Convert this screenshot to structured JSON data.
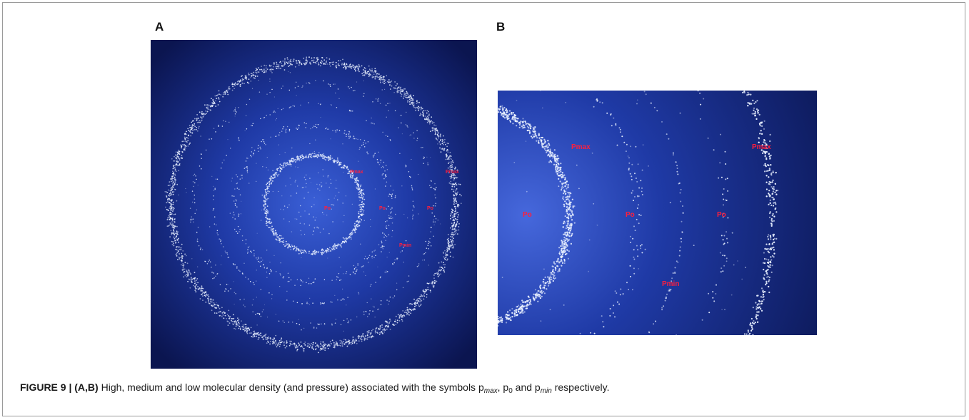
{
  "figure": {
    "panel_a_letter": "A",
    "panel_b_letter": "B",
    "panel_a_labels": {
      "pmax_inner": "Pmax",
      "pmax_outer": "Pmax",
      "p0_center": "Po",
      "p0_mid": "Po",
      "p0_outer": "Po",
      "pmin": "Pmin"
    },
    "panel_b_labels": {
      "pmax_left": "Pmax",
      "pmax_right": "Pmax",
      "p0_left": "Po",
      "p0_mid": "Po",
      "p0_right": "Po",
      "pmin": "Pmin"
    },
    "colors": {
      "background_dark": "#0b1550",
      "background_glow": "#3a5fd6",
      "particle": "#e8f0ff",
      "label_red": "#ff1f3d"
    }
  },
  "caption": {
    "label": "FIGURE 9 | (A,B)",
    "text_1": " High, medium and low molecular density (and pressure) associated with the symbols p",
    "sub_max": "max",
    "text_2": ", p",
    "sub_0": "0",
    "text_3": " and p",
    "sub_min": "min",
    "text_4": " respectively."
  }
}
